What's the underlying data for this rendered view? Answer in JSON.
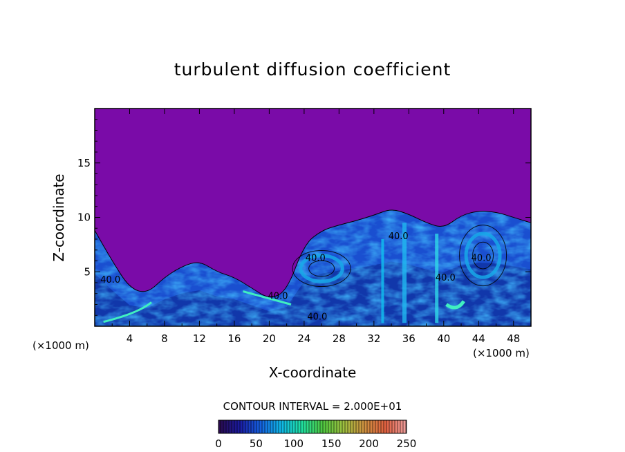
{
  "chart_data": {
    "type": "heatmap",
    "title": "turbulent diffusion coefficient",
    "xlabel": "X-coordinate",
    "ylabel": "Z-coordinate",
    "x_unit": "(×1000 m)",
    "z_unit": "(×1000 m)",
    "xlim": [
      0,
      50
    ],
    "ylim": [
      0,
      20
    ],
    "x_ticks": [
      4,
      8,
      12,
      16,
      20,
      24,
      28,
      32,
      36,
      40,
      44,
      48
    ],
    "y_ticks": [
      5,
      10,
      15
    ],
    "contour_interval_text": "CONTOUR INTERVAL = 2.000E+01",
    "contour_labels": [
      {
        "text": "40.0",
        "x": 34.8,
        "z": 8.0
      },
      {
        "text": "40.0",
        "x": 25.3,
        "z": 6.0
      },
      {
        "text": "40.0",
        "x": 44.3,
        "z": 6.0
      },
      {
        "text": "40.0",
        "x": 40.2,
        "z": 4.2
      },
      {
        "text": "40.0",
        "x": 1.8,
        "z": 4.0
      },
      {
        "text": "40.0",
        "x": 21.0,
        "z": 2.5
      },
      {
        "text": "40.0",
        "x": 25.5,
        "z": 0.6
      }
    ],
    "colorbar": {
      "min": 0,
      "max": 250,
      "tick_values": [
        0,
        50,
        100,
        150,
        200,
        250
      ],
      "tick_labels": [
        "0",
        "50",
        "100",
        "150",
        "200",
        "250"
      ],
      "colors": [
        "#2a0a4a",
        "#1a1aa0",
        "#1560e0",
        "#10b8e8",
        "#20e0a0",
        "#50c840",
        "#a0c040",
        "#d09040",
        "#e06040",
        "#f0a0a0"
      ]
    },
    "background_color": "#7a0ba8",
    "boundary_layer_top": [
      [
        0,
        8.8
      ],
      [
        2,
        6.0
      ],
      [
        4,
        3.5
      ],
      [
        6,
        3.0
      ],
      [
        8,
        4.5
      ],
      [
        10,
        5.5
      ],
      [
        12,
        6.0
      ],
      [
        14,
        5.0
      ],
      [
        16,
        4.5
      ],
      [
        18,
        3.5
      ],
      [
        20,
        2.5
      ],
      [
        22,
        3.2
      ],
      [
        24,
        7.5
      ],
      [
        26,
        8.8
      ],
      [
        28,
        9.3
      ],
      [
        30,
        9.7
      ],
      [
        32,
        10.2
      ],
      [
        34,
        10.8
      ],
      [
        36,
        10.3
      ],
      [
        38,
        9.5
      ],
      [
        40,
        9.0
      ],
      [
        42,
        10.2
      ],
      [
        44,
        10.6
      ],
      [
        46,
        10.5
      ],
      [
        48,
        10.0
      ],
      [
        50,
        9.5
      ]
    ]
  }
}
